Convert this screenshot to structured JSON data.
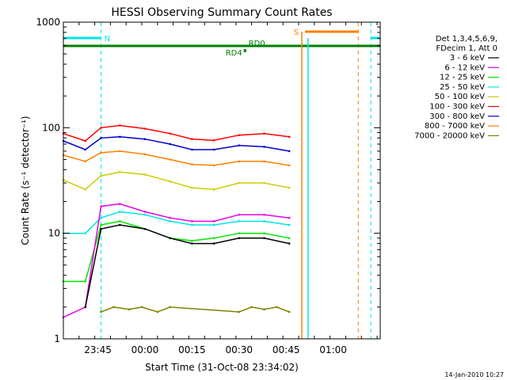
{
  "footer_date": "14-Jan-2010 10:27",
  "chart_data": {
    "type": "line",
    "title": "HESSI Observing Summary Count Rates",
    "xlabel": "Start Time (31-Oct-08 23:34:02)",
    "ylabel": "Count Rate (s⁻¹ detector⁻¹)",
    "y_scale": "log",
    "ylim": [
      1,
      1000
    ],
    "xlim": [
      "23:34",
      "01:15"
    ],
    "x_ticks": [
      "23:45",
      "00:00",
      "00:15",
      "00:30",
      "00:45",
      "01:00"
    ],
    "y_ticks": [
      "1",
      "10",
      "100",
      "1000"
    ],
    "grid": false,
    "legend_position": "right",
    "legend_header": [
      "Det 1,3,4,5,6,9,",
      "FDecim 1, Att 0"
    ],
    "series": [
      {
        "name": "3 - 6 keV",
        "color": "#000000",
        "x": [
          "23:41",
          "23:46",
          "23:52",
          "00:00",
          "00:08",
          "00:15",
          "00:22",
          "00:30",
          "00:38",
          "00:46"
        ],
        "y": [
          2,
          11,
          12,
          11,
          9,
          8,
          8,
          9,
          9,
          8
        ]
      },
      {
        "name": "6 - 12 keV",
        "color": "#e600e6",
        "x": [
          "23:34",
          "23:41",
          "23:46",
          "23:52",
          "00:00",
          "00:08",
          "00:15",
          "00:22",
          "00:30",
          "00:38",
          "00:46"
        ],
        "y": [
          1.6,
          2,
          18,
          19,
          16,
          14,
          13,
          13,
          15,
          15,
          14
        ]
      },
      {
        "name": "12 - 25 keV",
        "color": "#00e600",
        "x": [
          "23:34",
          "23:41",
          "23:46",
          "23:52",
          "00:00",
          "00:08",
          "00:15",
          "00:22",
          "00:30",
          "00:38",
          "00:46"
        ],
        "y": [
          3.5,
          3.5,
          12,
          13,
          11,
          9,
          8.5,
          9,
          10,
          10,
          9
        ]
      },
      {
        "name": "25 - 50 keV",
        "color": "#00e6e6",
        "x": [
          "23:34",
          "23:41",
          "23:46",
          "23:52",
          "00:00",
          "00:08",
          "00:15",
          "00:22",
          "00:30",
          "00:38",
          "00:46"
        ],
        "y": [
          10,
          10,
          14,
          16,
          15,
          13,
          12,
          12,
          13,
          13,
          12
        ]
      },
      {
        "name": "50 - 100 keV",
        "color": "#cccc00",
        "x": [
          "23:34",
          "23:41",
          "23:46",
          "23:52",
          "00:00",
          "00:08",
          "00:15",
          "00:22",
          "00:30",
          "00:38",
          "00:46"
        ],
        "y": [
          32,
          26,
          35,
          38,
          36,
          31,
          27,
          26,
          30,
          30,
          27
        ]
      },
      {
        "name": "100 - 300 keV",
        "color": "#ff0000",
        "x": [
          "23:34",
          "23:41",
          "23:46",
          "23:52",
          "00:00",
          "00:08",
          "00:15",
          "00:22",
          "00:30",
          "00:38",
          "00:46"
        ],
        "y": [
          88,
          75,
          100,
          105,
          98,
          88,
          78,
          76,
          85,
          88,
          82
        ]
      },
      {
        "name": "300 - 800 keV",
        "color": "#0000cc",
        "x": [
          "23:34",
          "23:41",
          "23:46",
          "23:52",
          "00:00",
          "00:08",
          "00:15",
          "00:22",
          "00:30",
          "00:38",
          "00:46"
        ],
        "y": [
          75,
          62,
          80,
          82,
          78,
          70,
          62,
          62,
          68,
          66,
          60
        ]
      },
      {
        "name": "800 - 7000 keV",
        "color": "#ff8000",
        "x": [
          "23:34",
          "23:41",
          "23:46",
          "23:52",
          "00:00",
          "00:08",
          "00:15",
          "00:22",
          "00:30",
          "00:38",
          "00:46"
        ],
        "y": [
          55,
          48,
          58,
          60,
          56,
          50,
          45,
          44,
          48,
          48,
          44
        ]
      },
      {
        "name": "7000 - 20000 keV",
        "color": "#808000",
        "x": [
          "23:46",
          "23:50",
          "23:55",
          "23:59",
          "00:04",
          "00:08",
          "00:30",
          "00:34",
          "00:38",
          "00:42",
          "00:46"
        ],
        "y": [
          1.8,
          2,
          1.9,
          2,
          1.8,
          2,
          1.8,
          2,
          1.9,
          2,
          1.8
        ]
      }
    ],
    "annotations": [
      {
        "text": "N",
        "color": "#00e6e6"
      },
      {
        "text": "S",
        "color": "#ff8000"
      },
      {
        "text": "RD0",
        "color": "#008000"
      },
      {
        "text": "RD4",
        "color": "#008000"
      }
    ]
  }
}
